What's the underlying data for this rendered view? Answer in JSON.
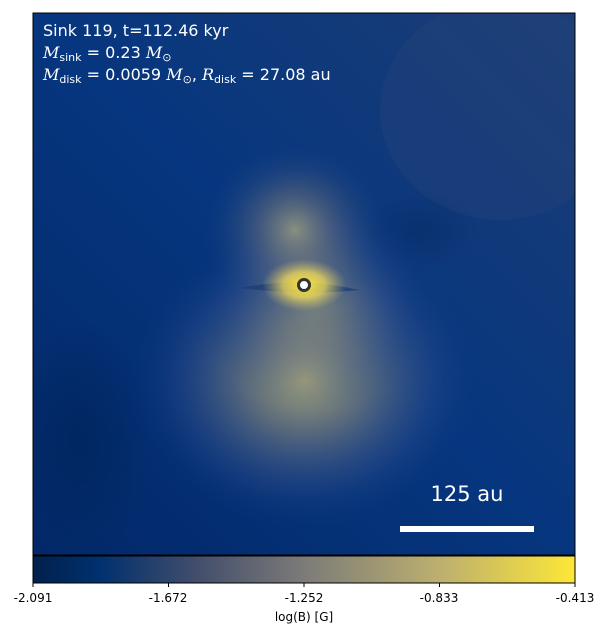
{
  "annotation": {
    "sink_line": "Sink 119, t=112.46 kyr",
    "msink_var": "M",
    "msink_sub": "sink",
    "msink_value": "= 0.23",
    "msink_unit_var": "M",
    "msink_unit_sub": "⊙",
    "mdisk_var": "M",
    "mdisk_sub": "disk",
    "mdisk_value": "= 0.0059",
    "mdisk_unit_var": "M",
    "mdisk_unit_sub": "⊙",
    "rdisk_sep": ",",
    "rdisk_var": "R",
    "rdisk_sub": "disk",
    "rdisk_value": "= 27.08 au"
  },
  "scale_bar": {
    "label": "125 au"
  },
  "colorbar": {
    "label": "log(B) [G]",
    "ticks": [
      "-2.091",
      "-1.672",
      "-1.252",
      "-0.833",
      "-0.413"
    ],
    "colors": [
      "#00204c",
      "#00306e",
      "#3a4c6c",
      "#7a7b78",
      "#bcaf6f",
      "#fde737"
    ]
  }
}
